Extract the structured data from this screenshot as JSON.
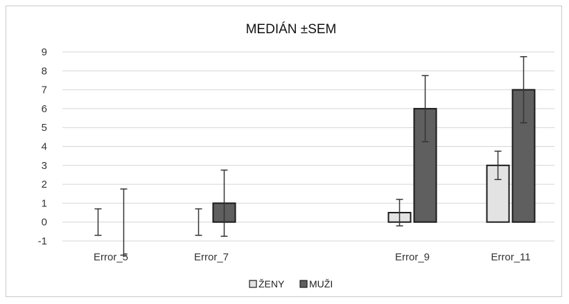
{
  "chart_data": {
    "type": "bar",
    "title": "MEDIÁN ±SEM",
    "xlabel": "",
    "ylabel": "",
    "ylim": [
      -1,
      9
    ],
    "yticks": [
      -1,
      0,
      1,
      2,
      3,
      4,
      5,
      6,
      7,
      8,
      9
    ],
    "grid": true,
    "legend_position": "bottom",
    "categories": [
      "Error_5",
      "Error_7",
      "Error_9",
      "Error_11"
    ],
    "series": [
      {
        "name": "ŽENY",
        "color": "#e3e3e3",
        "values": [
          0,
          0,
          0.5,
          3
        ],
        "error": [
          0.7,
          0.7,
          0.7,
          0.75
        ]
      },
      {
        "name": "MUŽI",
        "color": "#5f5f5f",
        "values": [
          0,
          1,
          6,
          7
        ],
        "error": [
          1.75,
          1.75,
          1.75,
          1.75
        ]
      }
    ]
  }
}
